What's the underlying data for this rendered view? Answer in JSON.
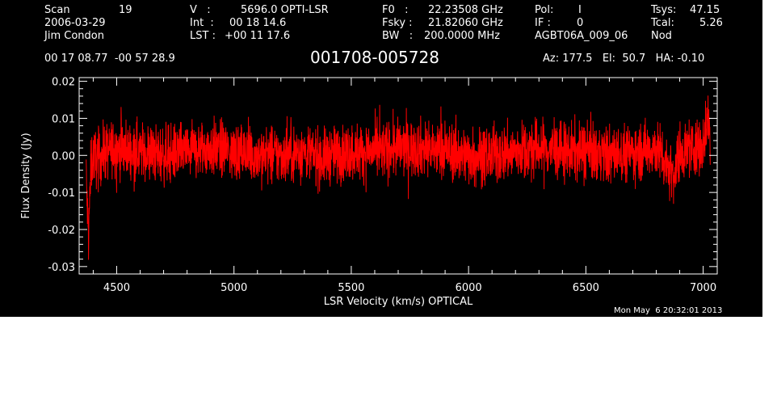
{
  "header": {
    "col1": {
      "scan_label": "Scan",
      "scan_value": "19",
      "date": "2006-03-29",
      "observer": "Jim Condon"
    },
    "col2": {
      "v_label": "V   :",
      "v_value": "5696.0 OPTI-LSR",
      "int_label": "Int  :",
      "int_value": "00 18 14.6",
      "lst_label": "LST :",
      "lst_value": "+00 11 17.6"
    },
    "col3": {
      "f0_label": "F0   :",
      "f0_value": "22.23508 GHz",
      "fsky_label": "Fsky :",
      "fsky_value": "21.82060 GHz",
      "bw_label": "BW   :",
      "bw_value": "200.0000 MHz"
    },
    "col4": {
      "pol_label": "Pol:",
      "pol_value": "I",
      "if_label": "IF :",
      "if_value": "0",
      "project": "AGBT06A_009_06"
    },
    "col5": {
      "tsys_label": "Tsys:",
      "tsys_value": "47.15",
      "tcal_label": "Tcal:",
      "tcal_value": "5.26",
      "mode": "Nod"
    },
    "coords": "00 17 08.77  -00 57 28.9",
    "source": "001708-005728",
    "az_el_ha": "Az: 177.5   El:  50.7   HA: -0.10"
  },
  "timestamp": "Mon May  6 20:32:01 2013",
  "chart_data": {
    "type": "line",
    "xlabel": "LSR Velocity (km/s) OPTICAL",
    "ylabel": "Flux Density (Jy)",
    "xlim": [
      4340,
      7060
    ],
    "ylim": [
      -0.032,
      0.021
    ],
    "x_ticks": [
      4500,
      5000,
      5500,
      6000,
      6500,
      7000
    ],
    "y_ticks": [
      -0.03,
      -0.02,
      -0.01,
      0.0,
      0.01,
      0.02
    ],
    "x_tick_labels": [
      "4500",
      "5000",
      "5500",
      "6000",
      "6500",
      "7000"
    ],
    "y_tick_labels": [
      "-0.03",
      "-0.02",
      "-0.01",
      "0.00",
      "0.01",
      "0.02"
    ],
    "series": [
      {
        "color": "#ff0000",
        "description_points": {
          "x": [
            4370,
            4375,
            4380,
            4385,
            4390,
            4400,
            4420,
            4450,
            4500,
            4600,
            4700,
            4800,
            4900,
            5000,
            5100,
            5200,
            5300,
            5380,
            5400,
            5500,
            5600,
            5700,
            5800,
            5900,
            6000,
            6100,
            6200,
            6300,
            6400,
            6500,
            6600,
            6700,
            6800,
            6880,
            6900,
            6950,
            7000,
            7020,
            7030
          ],
          "y": [
            -0.005,
            -0.015,
            -0.022,
            -0.012,
            -0.003,
            0.0,
            -0.001,
            0.001,
            0.002,
            0.001,
            0.0,
            0.001,
            0.002,
            0.001,
            0.0,
            0.0,
            0.001,
            -0.001,
            0.0,
            0.001,
            0.001,
            0.002,
            0.002,
            0.001,
            0.0,
            0.0,
            0.001,
            0.002,
            0.001,
            0.001,
            0.0,
            0.001,
            0.002,
            -0.005,
            0.001,
            0.002,
            0.003,
            0.01,
            0.005
          ]
        }
      }
    ],
    "grid": false
  }
}
